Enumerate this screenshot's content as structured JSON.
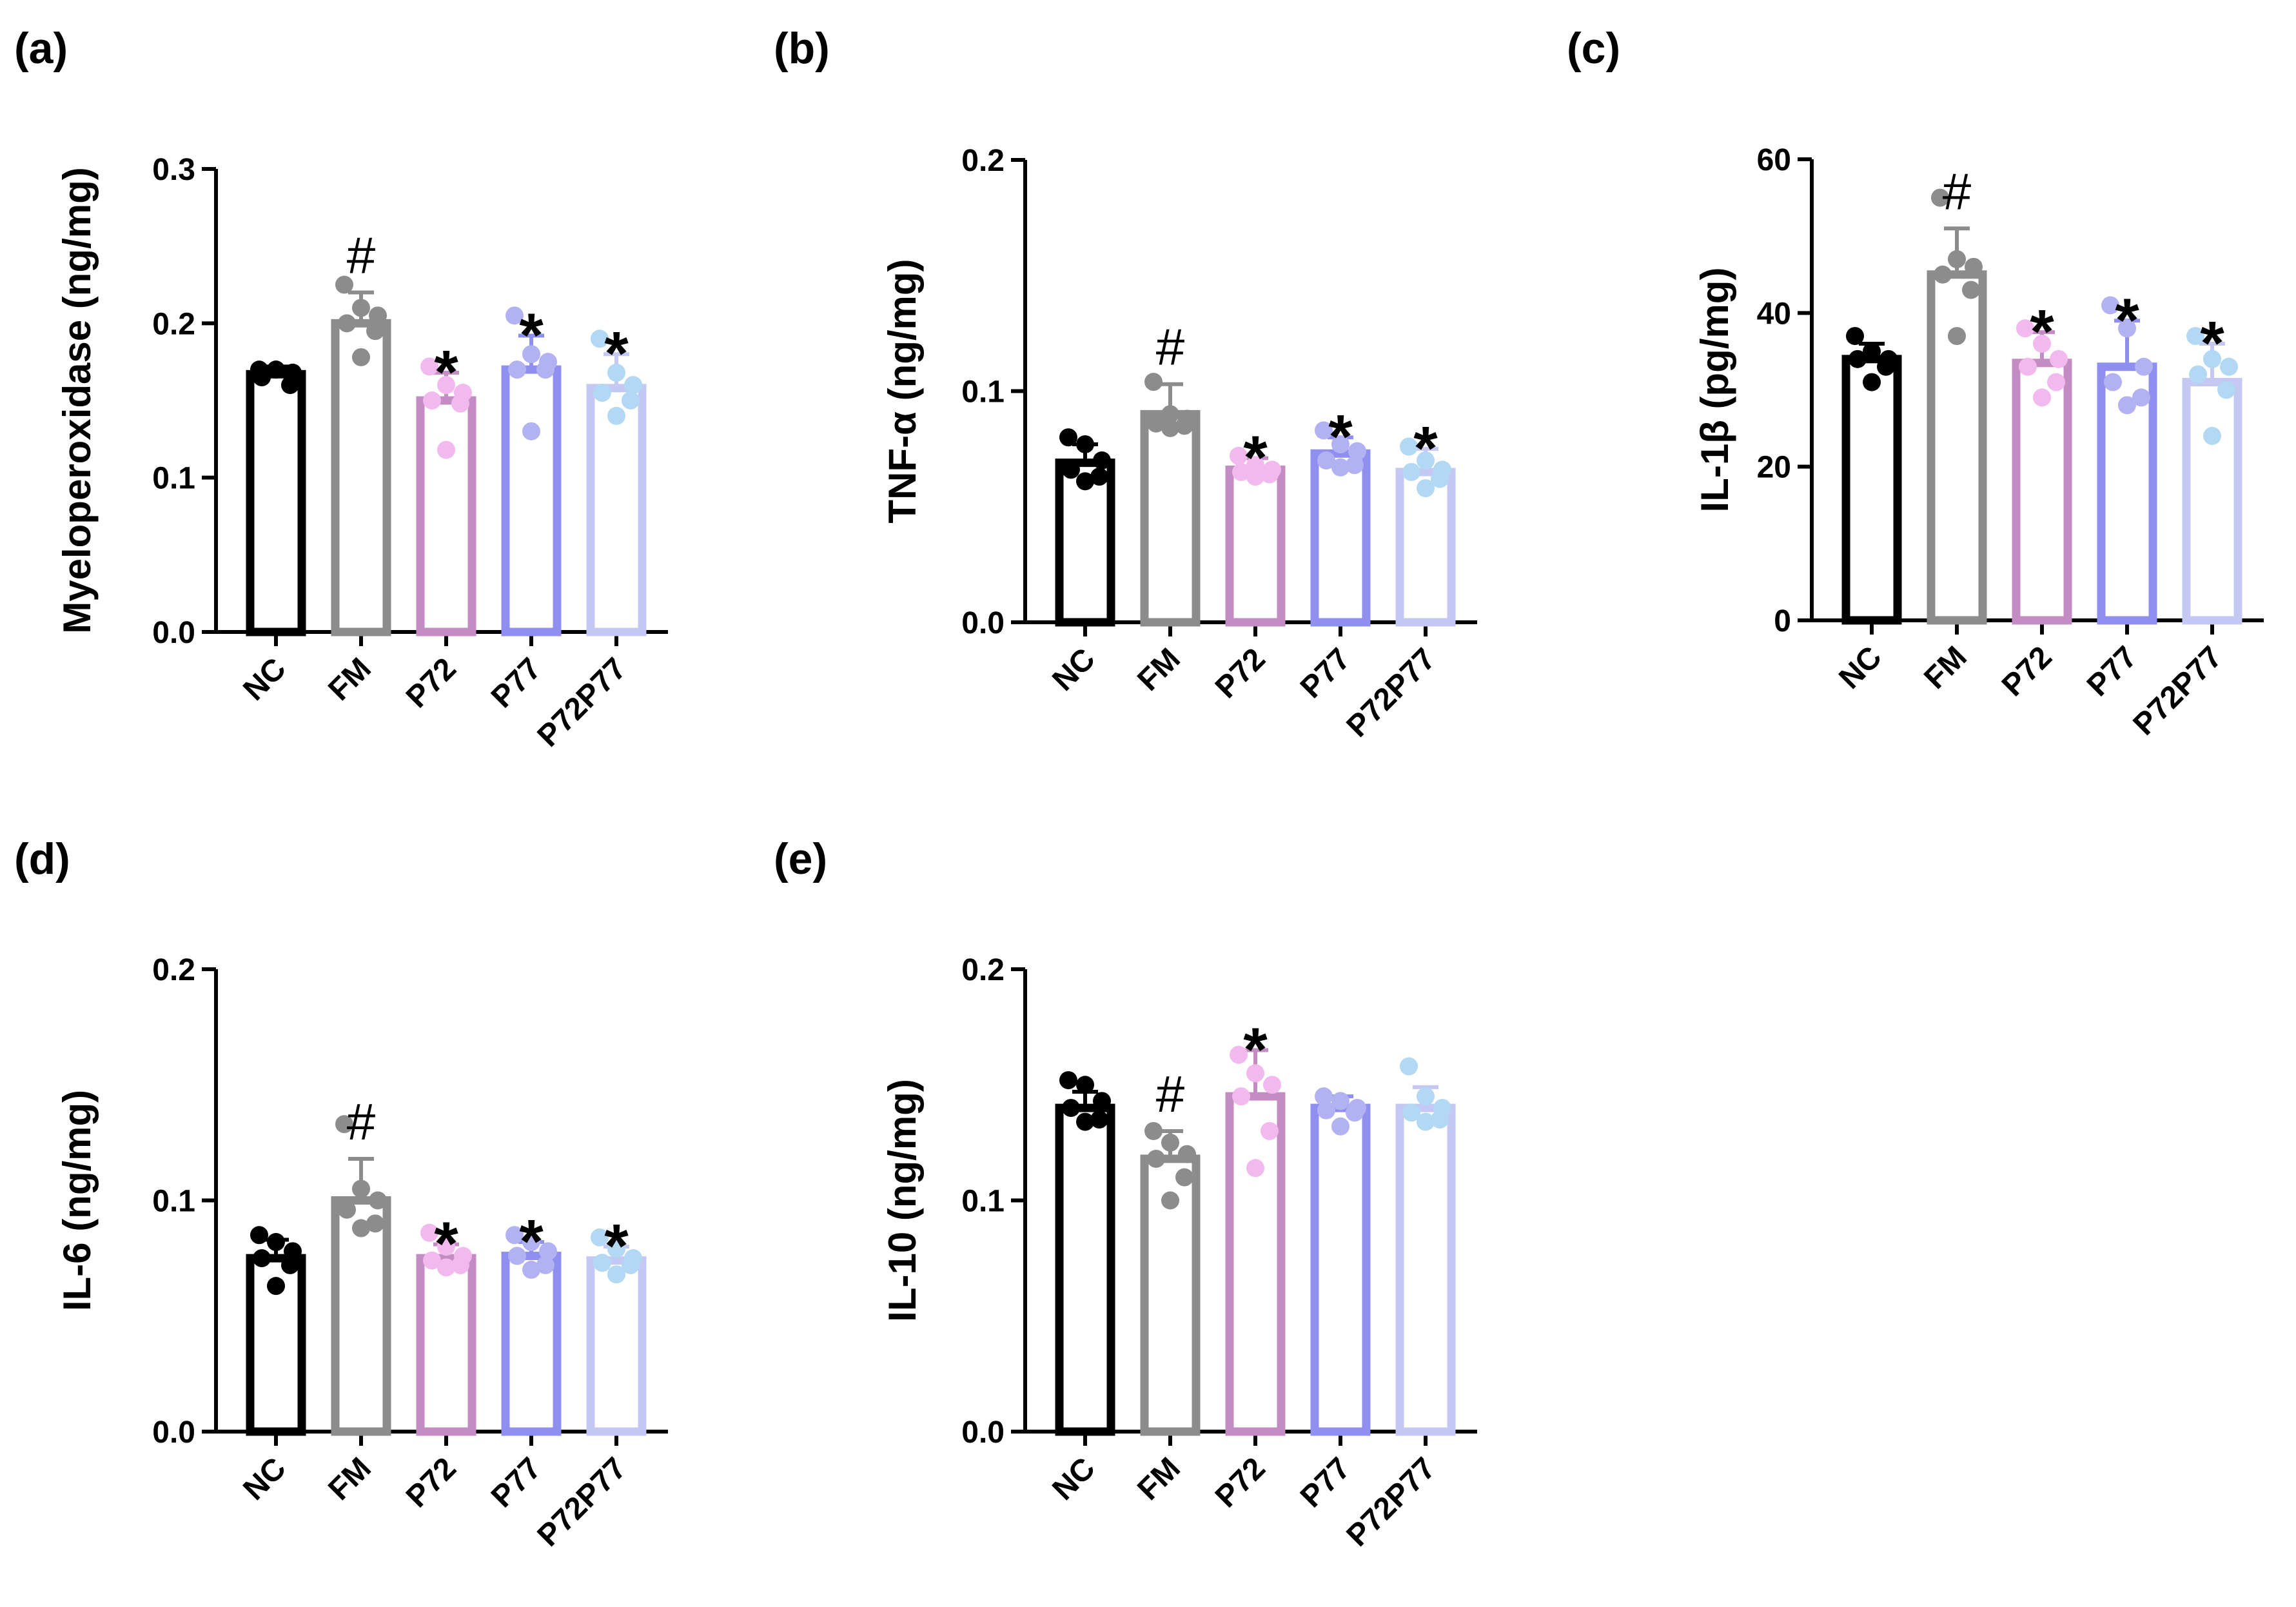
{
  "figure": {
    "categories": [
      "NC",
      "FM",
      "P72",
      "P77",
      "P72P77"
    ],
    "group_colors": {
      "NC": {
        "line": "#000000",
        "dot": "#000000"
      },
      "FM": {
        "line": "#8c8c8c",
        "dot": "#8c8c8c"
      },
      "P72": {
        "line": "#c38dc3",
        "dot": "#f2b9ef"
      },
      "P77": {
        "line": "#8f8ff0",
        "dot": "#b2b2f2"
      },
      "P72P77": {
        "line": "#c4c8f2",
        "dot": "#b3d8f4"
      }
    }
  },
  "chart_data": [
    {
      "panel": "(a)",
      "type": "bar",
      "ylabel": "Myeloperoxidase (ng/mg)",
      "ylim": [
        0,
        0.3
      ],
      "yticks": [
        "0.0",
        "0.1",
        "0.2",
        "0.3"
      ],
      "categories": [
        "NC",
        "FM",
        "P72",
        "P77",
        "P72P77"
      ],
      "values": [
        0.167,
        0.2,
        0.15,
        0.17,
        0.158
      ],
      "sd": [
        0.005,
        0.02,
        0.018,
        0.022,
        0.022
      ],
      "points": [
        [
          0.17,
          0.17,
          0.168,
          0.165,
          0.16,
          0.17
        ],
        [
          0.225,
          0.21,
          0.205,
          0.2,
          0.195,
          0.178
        ],
        [
          0.172,
          0.16,
          0.155,
          0.15,
          0.148,
          0.118
        ],
        [
          0.205,
          0.18,
          0.175,
          0.17,
          0.17,
          0.13
        ],
        [
          0.19,
          0.168,
          0.16,
          0.155,
          0.15,
          0.14
        ]
      ],
      "significance": [
        "",
        "#",
        "*",
        "*",
        "*"
      ]
    },
    {
      "panel": "(b)",
      "type": "bar",
      "ylabel": "TNF-α (ng/mg)",
      "ylim": [
        0,
        0.2
      ],
      "yticks": [
        "0.0",
        "0.1",
        "0.2"
      ],
      "categories": [
        "NC",
        "FM",
        "P72",
        "P77",
        "P72P77"
      ],
      "values": [
        0.069,
        0.09,
        0.066,
        0.073,
        0.065
      ],
      "sd": [
        0.008,
        0.013,
        0.005,
        0.007,
        0.01
      ],
      "points": [
        [
          0.08,
          0.077,
          0.07,
          0.066,
          0.063,
          0.061
        ],
        [
          0.104,
          0.09,
          0.088,
          0.086,
          0.085,
          0.084
        ],
        [
          0.072,
          0.068,
          0.066,
          0.065,
          0.064,
          0.063
        ],
        [
          0.083,
          0.077,
          0.074,
          0.07,
          0.068,
          0.067
        ],
        [
          0.076,
          0.07,
          0.066,
          0.065,
          0.062,
          0.058
        ]
      ],
      "significance": [
        "",
        "#",
        "*",
        "*",
        "*"
      ]
    },
    {
      "panel": "(c)",
      "type": "bar",
      "ylabel": "IL-1β (pg/mg)",
      "ylim": [
        0,
        60
      ],
      "yticks": [
        "0",
        "20",
        "40",
        "60"
      ],
      "categories": [
        "NC",
        "FM",
        "P72",
        "P77",
        "P72P77"
      ],
      "values": [
        34,
        45,
        33.5,
        33,
        31
      ],
      "sd": [
        2,
        6,
        4,
        6,
        5
      ],
      "points": [
        [
          37,
          35,
          34,
          34,
          33,
          31
        ],
        [
          55,
          47,
          46,
          45,
          43,
          37
        ],
        [
          38,
          36,
          34,
          33,
          31,
          29
        ],
        [
          41,
          38,
          33,
          31,
          29,
          28
        ],
        [
          37,
          34,
          33,
          32,
          30,
          24
        ]
      ],
      "significance": [
        "",
        "#",
        "*",
        "*",
        "*"
      ]
    },
    {
      "panel": "(d)",
      "type": "bar",
      "ylabel": "IL-6 (ng/mg)",
      "ylim": [
        0,
        0.2
      ],
      "yticks": [
        "0.0",
        "0.1",
        "0.2"
      ],
      "categories": [
        "NC",
        "FM",
        "P72",
        "P77",
        "P72P77"
      ],
      "values": [
        0.075,
        0.1,
        0.075,
        0.076,
        0.074
      ],
      "sd": [
        0.008,
        0.018,
        0.006,
        0.006,
        0.006
      ],
      "points": [
        [
          0.085,
          0.082,
          0.078,
          0.075,
          0.072,
          0.063
        ],
        [
          0.133,
          0.105,
          0.1,
          0.096,
          0.09,
          0.088
        ],
        [
          0.086,
          0.08,
          0.076,
          0.074,
          0.072,
          0.071
        ],
        [
          0.085,
          0.082,
          0.078,
          0.076,
          0.072,
          0.07
        ],
        [
          0.084,
          0.079,
          0.075,
          0.073,
          0.072,
          0.068
        ]
      ],
      "significance": [
        "",
        "#",
        "*",
        "*",
        "*"
      ]
    },
    {
      "panel": "(e)",
      "type": "bar",
      "ylabel": "IL-10 (ng/mg)",
      "ylim": [
        0,
        0.2
      ],
      "yticks": [
        "0.0",
        "0.1",
        "0.2"
      ],
      "categories": [
        "NC",
        "FM",
        "P72",
        "P77",
        "P72P77"
      ],
      "values": [
        0.14,
        0.118,
        0.145,
        0.14,
        0.14
      ],
      "sd": [
        0.007,
        0.012,
        0.02,
        0.005,
        0.009
      ],
      "points": [
        [
          0.152,
          0.15,
          0.143,
          0.14,
          0.135,
          0.134
        ],
        [
          0.13,
          0.125,
          0.12,
          0.118,
          0.11,
          0.1
        ],
        [
          0.163,
          0.155,
          0.15,
          0.145,
          0.13,
          0.114
        ],
        [
          0.145,
          0.143,
          0.14,
          0.139,
          0.138,
          0.132
        ],
        [
          0.158,
          0.145,
          0.14,
          0.138,
          0.135,
          0.134
        ]
      ],
      "significance": [
        "",
        "#",
        "*",
        "",
        ""
      ]
    }
  ]
}
